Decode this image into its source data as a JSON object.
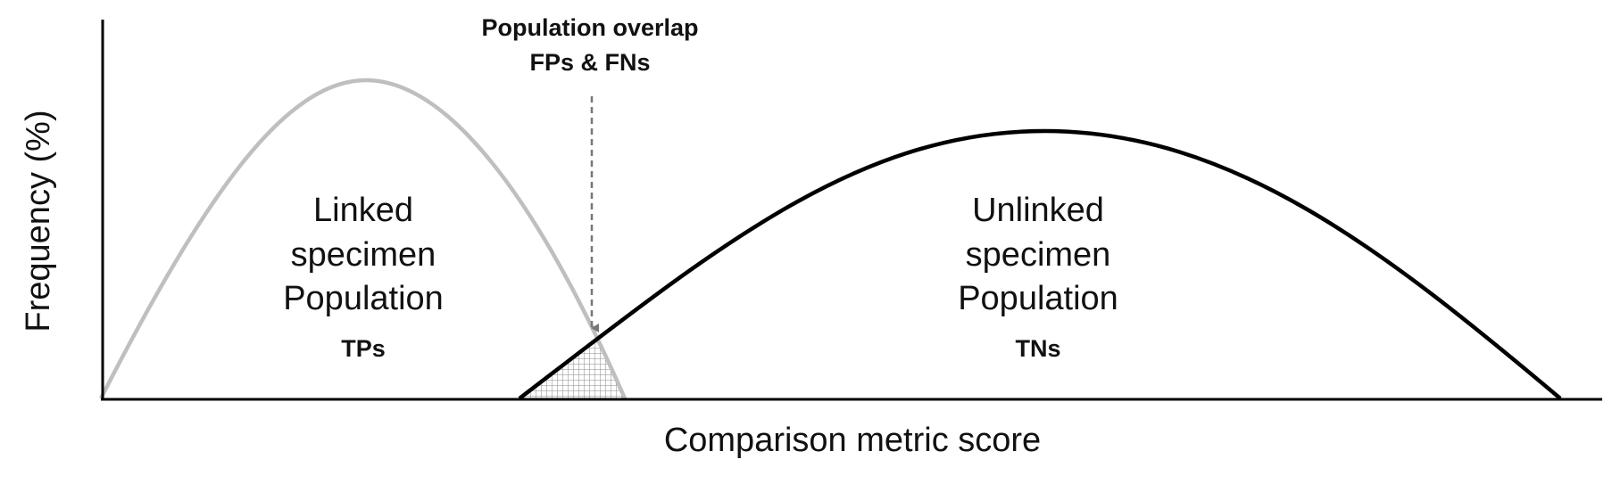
{
  "diagram": {
    "axis": {
      "x_label": "Comparison metric score",
      "y_label": "Frequency (%)"
    },
    "overlap_annotation": {
      "line1": "Population overlap",
      "line2": "FPs & FNs"
    },
    "linked": {
      "lines": [
        "Linked",
        "specimen",
        "Population"
      ],
      "tag": "TPs",
      "color": "#bfbfbf"
    },
    "unlinked": {
      "lines": [
        "Unlinked",
        "specimen",
        "Population"
      ],
      "tag": "TNs",
      "color": "#000000"
    }
  }
}
